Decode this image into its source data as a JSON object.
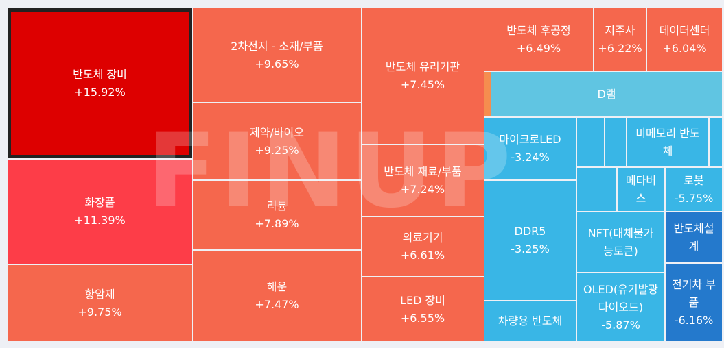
{
  "colors": {
    "background": "#eef0f5",
    "strong_up": "#dd0000",
    "mid_up": "#fd3d48",
    "up": "#f5674d",
    "orange_sliver": "#f58d4f",
    "light_blue": "#60c5e2",
    "down": "#39b6e6",
    "strong_down": "#2479cc"
  },
  "watermark": {
    "text": "FINUP"
  },
  "chart_data": {
    "type": "treemap",
    "title": "",
    "selected": "반도체 장비",
    "nodes": [
      {
        "name": "반도체 장비",
        "change": "+15.92%"
      },
      {
        "name": "화장품",
        "change": "+11.39%"
      },
      {
        "name": "항암제",
        "change": "+9.75%"
      },
      {
        "name": "2차전지 - 소재/부품",
        "change": "+9.65%"
      },
      {
        "name": "제약/바이오",
        "change": "+9.25%"
      },
      {
        "name": "리튬",
        "change": "+7.89%"
      },
      {
        "name": "해운",
        "change": "+7.47%"
      },
      {
        "name": "반도체 유리기판",
        "change": "+7.45%"
      },
      {
        "name": "반도체 재료/부품",
        "change": "+7.24%"
      },
      {
        "name": "의료기기",
        "change": "+6.61%"
      },
      {
        "name": "LED 장비",
        "change": "+6.55%"
      },
      {
        "name": "반도체 후공정",
        "change": "+6.49%"
      },
      {
        "name": "지주사",
        "change": "+6.22%"
      },
      {
        "name": "데이터센터",
        "change": "+6.04%"
      },
      {
        "name": "",
        "change": ""
      },
      {
        "name": "D램",
        "change": ""
      },
      {
        "name": "마이크로LED",
        "change": "-3.24%"
      },
      {
        "name": "DDR5",
        "change": "-3.25%"
      },
      {
        "name": "차량용 반도체",
        "change": ""
      },
      {
        "name": "",
        "change": ""
      },
      {
        "name": "",
        "change": ""
      },
      {
        "name": "비메모리 반도\n체",
        "change": ""
      },
      {
        "name": "",
        "change": ""
      },
      {
        "name": "",
        "change": ""
      },
      {
        "name": "메타버\n스",
        "change": ""
      },
      {
        "name": "로봇",
        "change": "-5.75%"
      },
      {
        "name": "NFT(대체불가\n능토큰)",
        "change": ""
      },
      {
        "name": "반도체설\n계",
        "change": ""
      },
      {
        "name": "OLED(유기발광\n다이오드)",
        "change": "-5.87%"
      },
      {
        "name": "전기차 부\n품",
        "change": "-6.16%"
      }
    ]
  }
}
